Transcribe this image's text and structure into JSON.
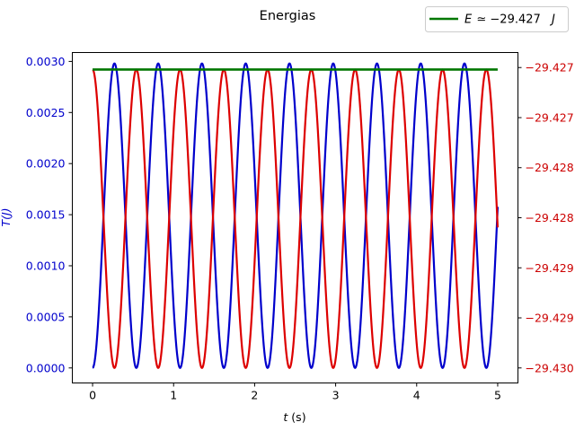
{
  "chart_data": {
    "type": "line",
    "title": "Energias",
    "xlabel_var": "t",
    "xlabel_unit": " (s)",
    "ylabel_left": "T(J)",
    "xlim": [
      -0.25,
      5.25
    ],
    "ylim_left": [
      -0.000147,
      0.003087
    ],
    "ylim_right": [
      -29.43015,
      -29.42685
    ],
    "x_ticks": [
      0,
      1,
      2,
      3,
      4,
      5
    ],
    "x_tick_labels": [
      "0",
      "1",
      "2",
      "3",
      "4",
      "5"
    ],
    "y_left_ticks": [
      0.0,
      0.0005,
      0.001,
      0.0015,
      0.002,
      0.0025,
      0.003
    ],
    "y_left_tick_labels": [
      "0.0000",
      "0.0005",
      "0.0010",
      "0.0015",
      "0.0020",
      "0.0025",
      "0.0030"
    ],
    "y_right_ticks": [
      -29.43,
      -29.4295,
      -29.429,
      -29.4285,
      -29.428,
      -29.4275,
      -29.427
    ],
    "y_right_tick_labels": [
      "−29.430",
      "−29.429",
      "−29.429",
      "−29.428",
      "−29.428",
      "−29.427",
      "−29.427"
    ],
    "grid": false,
    "legend_position": "top-right",
    "legend_label": {
      "prefix": "E",
      "approx": "≃",
      "value": "−29.427",
      "unit": "J"
    },
    "series": [
      {
        "axis": "left",
        "color": "#0000cc",
        "function": "sin_squared",
        "amplitude": 0.00298,
        "period": 0.54,
        "x_range": [
          0,
          5
        ]
      },
      {
        "axis": "right",
        "color": "#dd0000",
        "function": "cos_squared",
        "offset": -29.43,
        "amplitude": 0.00298,
        "period": 0.54,
        "x_range": [
          0,
          5
        ]
      },
      {
        "name": "E ≃ −29.427 J",
        "axis": "right",
        "color": "#007700",
        "function": "constant",
        "value": -29.42702,
        "x_range": [
          0,
          5
        ]
      }
    ]
  }
}
